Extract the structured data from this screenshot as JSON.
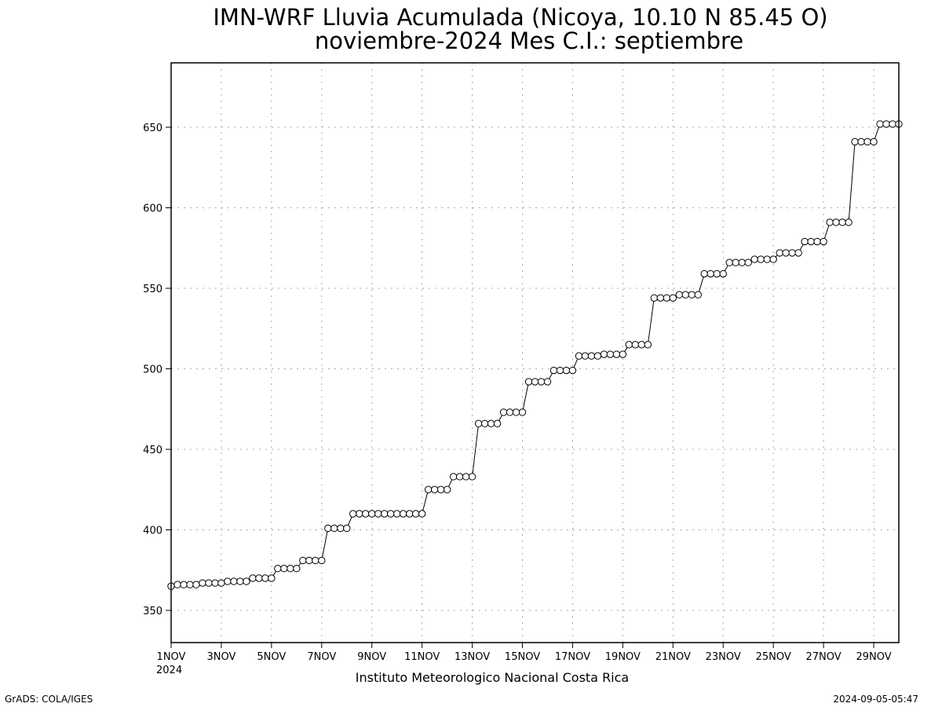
{
  "footer": {
    "left": "GrADS: COLA/IGES",
    "right": "2024-09-05-05:47"
  },
  "chart_data": {
    "type": "line",
    "title": "IMN-WRF  Lluvia Acumulada (Nicoya, 10.10  N 85.45  O)",
    "subtitle": "noviembre-2024 Mes C.I.: septiembre",
    "xlabel": "Instituto Meteorologico Nacional Costa Rica",
    "xlabel_year": "2024",
    "ylabel": "",
    "xlim": [
      1,
      30
    ],
    "ylim": [
      330,
      690
    ],
    "yticks": [
      350,
      400,
      450,
      500,
      550,
      600,
      650
    ],
    "xticks": [
      1,
      3,
      5,
      7,
      9,
      11,
      13,
      15,
      17,
      19,
      21,
      23,
      25,
      27,
      29
    ],
    "xtick_labels": [
      "1NOV",
      "3NOV",
      "5NOV",
      "7NOV",
      "9NOV",
      "11NOV",
      "13NOV",
      "15NOV",
      "17NOV",
      "19NOV",
      "21NOV",
      "23NOV",
      "25NOV",
      "27NOV",
      "29NOV"
    ],
    "grid": true,
    "marker": "open-circle",
    "line_color": "#000000",
    "series": [
      {
        "x": [
          1.0,
          1.25,
          1.5,
          1.75,
          2.0,
          2.25,
          2.5,
          2.75,
          3.0,
          3.25,
          3.5,
          3.75,
          4.0,
          4.25,
          4.5,
          4.75,
          5.0,
          5.25,
          5.5,
          5.75,
          6.0,
          6.25,
          6.5,
          6.75,
          7.0,
          7.25,
          7.5,
          7.75,
          8.0,
          8.25,
          8.5,
          8.75,
          9.0,
          9.25,
          9.5,
          9.75,
          10.0,
          10.25,
          10.5,
          10.75,
          11.0,
          11.25,
          11.5,
          11.75,
          12.0,
          12.25,
          12.5,
          12.75,
          13.0,
          13.25,
          13.5,
          13.75,
          14.0,
          14.25,
          14.5,
          14.75,
          15.0,
          15.25,
          15.5,
          15.75,
          16.0,
          16.25,
          16.5,
          16.75,
          17.0,
          17.25,
          17.5,
          17.75,
          18.0,
          18.25,
          18.5,
          18.75,
          19.0,
          19.25,
          19.5,
          19.75,
          20.0,
          20.25,
          20.5,
          20.75,
          21.0,
          21.25,
          21.5,
          21.75,
          22.0,
          22.25,
          22.5,
          22.75,
          23.0,
          23.25,
          23.5,
          23.75,
          24.0,
          24.25,
          24.5,
          24.75,
          25.0,
          25.25,
          25.5,
          25.75,
          26.0,
          26.25,
          26.5,
          26.75,
          27.0,
          27.25,
          27.5,
          27.75,
          28.0,
          28.25,
          28.5,
          28.75,
          29.0,
          29.25,
          29.5,
          29.75,
          30.0
        ],
        "y": [
          365,
          366,
          366,
          366,
          366,
          367,
          367,
          367,
          367,
          368,
          368,
          368,
          368,
          370,
          370,
          370,
          370,
          376,
          376,
          376,
          376,
          381,
          381,
          381,
          381,
          401,
          401,
          401,
          401,
          410,
          410,
          410,
          410,
          410,
          410,
          410,
          410,
          410,
          410,
          410,
          410,
          425,
          425,
          425,
          425,
          433,
          433,
          433,
          433,
          466,
          466,
          466,
          466,
          473,
          473,
          473,
          473,
          492,
          492,
          492,
          492,
          499,
          499,
          499,
          499,
          508,
          508,
          508,
          508,
          509,
          509,
          509,
          509,
          515,
          515,
          515,
          515,
          544,
          544,
          544,
          544,
          546,
          546,
          546,
          546,
          559,
          559,
          559,
          559,
          566,
          566,
          566,
          566,
          568,
          568,
          568,
          568,
          572,
          572,
          572,
          572,
          579,
          579,
          579,
          579,
          591,
          591,
          591,
          591,
          641,
          641,
          641,
          641,
          652,
          652,
          652,
          652
        ]
      }
    ]
  }
}
